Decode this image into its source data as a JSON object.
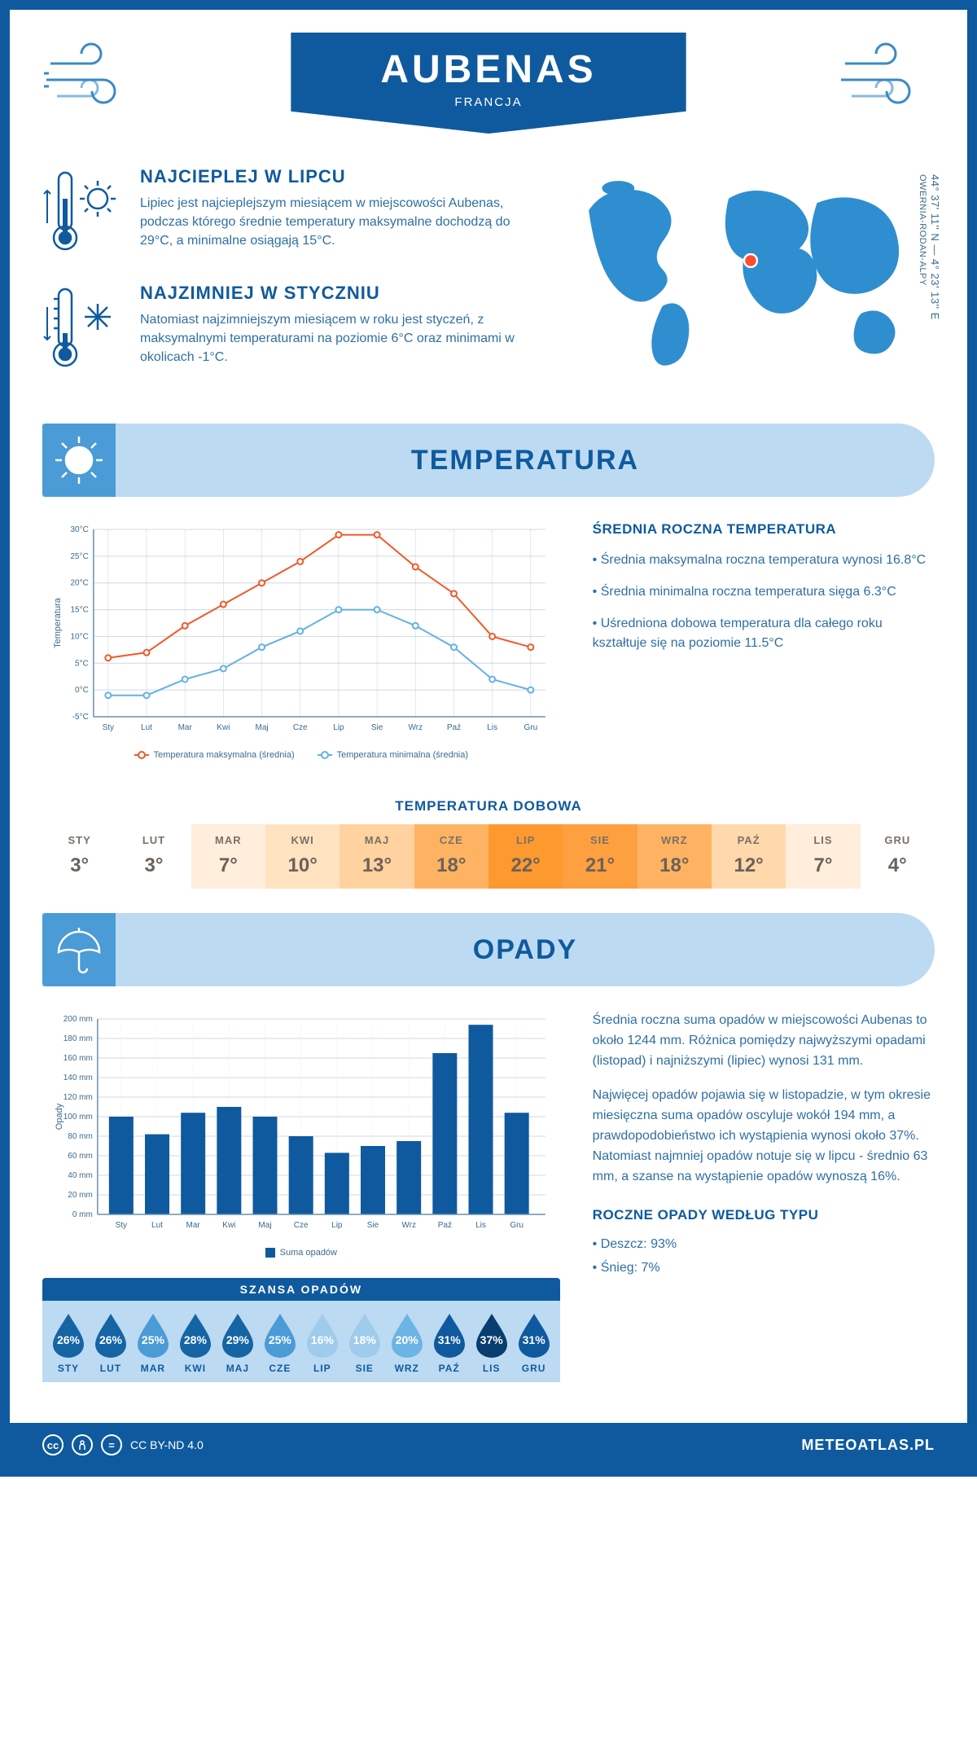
{
  "header": {
    "city": "AUBENAS",
    "country": "FRANCJA"
  },
  "intro": {
    "hot": {
      "title": "NAJCIEPLEJ W LIPCU",
      "body": "Lipiec jest najcieplejszym miesiącem w miejscowości Aubenas, podczas którego średnie temperatury maksymalne dochodzą do 29°C, a minimalne osiągają 15°C."
    },
    "cold": {
      "title": "NAJZIMNIEJ W STYCZNIU",
      "body": "Natomiast najzimniejszym miesiącem w roku jest styczeń, z maksymalnymi temperaturami na poziomie 6°C oraz minimami w okolicach -1°C."
    },
    "coords": "44° 37' 11'' N — 4° 23' 13'' E",
    "region": "OWERNIA-RODAN-ALPY"
  },
  "temperature": {
    "section_title": "TEMPERATURA",
    "months": [
      "Sty",
      "Lut",
      "Mar",
      "Kwi",
      "Maj",
      "Cze",
      "Lip",
      "Sie",
      "Wrz",
      "Paź",
      "Lis",
      "Gru"
    ],
    "max": [
      6,
      7,
      12,
      16,
      20,
      24,
      29,
      29,
      23,
      18,
      10,
      8
    ],
    "min": [
      -1,
      -1,
      2,
      4,
      8,
      11,
      15,
      15,
      12,
      8,
      2,
      0
    ],
    "ylim": [
      -5,
      30
    ],
    "yticks": [
      -5,
      0,
      5,
      10,
      15,
      20,
      25,
      30
    ],
    "ytick_labels": [
      "-5°C",
      "0°C",
      "5°C",
      "10°C",
      "15°C",
      "20°C",
      "25°C",
      "30°C"
    ],
    "colors": {
      "max": "#ee5a2a",
      "min": "#64b1e4",
      "grid": "#d0d8e0"
    },
    "axis_label": "Temperatura",
    "legend_max": "Temperatura maksymalna (średnia)",
    "legend_min": "Temperatura minimalna (średnia)",
    "info_title": "ŚREDNIA ROCZNA TEMPERATURA",
    "info_lines": [
      "• Średnia maksymalna roczna temperatura wynosi 16.8°C",
      "• Średnia minimalna roczna temperatura sięga 6.3°C",
      "• Uśredniona dobowa temperatura dla całego roku kształtuje się na poziomie 11.5°C"
    ],
    "daily_title": "TEMPERATURA DOBOWA",
    "daily_months": [
      "STY",
      "LUT",
      "MAR",
      "KWI",
      "MAJ",
      "CZE",
      "LIP",
      "SIE",
      "WRZ",
      "PAŹ",
      "LIS",
      "GRU"
    ],
    "daily_values": [
      "3°",
      "3°",
      "7°",
      "10°",
      "13°",
      "18°",
      "22°",
      "21°",
      "18°",
      "12°",
      "7°",
      "4°"
    ],
    "daily_colors": [
      "#ffffff",
      "#ffffff",
      "#ffeedb",
      "#ffe2c0",
      "#ffd2a0",
      "#ffb362",
      "#fe9930",
      "#fea040",
      "#ffb362",
      "#ffd8ac",
      "#ffeedb",
      "#ffffff"
    ]
  },
  "precipitation": {
    "section_title": "OPADY",
    "months": [
      "Sty",
      "Lut",
      "Mar",
      "Kwi",
      "Maj",
      "Cze",
      "Lip",
      "Sie",
      "Wrz",
      "Paź",
      "Lis",
      "Gru"
    ],
    "values": [
      100,
      82,
      104,
      110,
      100,
      80,
      63,
      70,
      75,
      165,
      194,
      104
    ],
    "ylim": [
      0,
      200
    ],
    "yticks": [
      0,
      20,
      40,
      60,
      80,
      100,
      120,
      140,
      160,
      180,
      200
    ],
    "ytick_labels": [
      "0 mm",
      "20 mm",
      "40 mm",
      "60 mm",
      "80 mm",
      "100 mm",
      "120 mm",
      "140 mm",
      "160 mm",
      "180 mm",
      "200 mm"
    ],
    "bar_color": "#0f5a9e",
    "axis_label": "Opady",
    "legend": "Suma opadów",
    "summary_1": "Średnia roczna suma opadów w miejscowości Aubenas to około 1244 mm. Różnica pomiędzy najwyższymi opadami (listopad) i najniższymi (lipiec) wynosi 131 mm.",
    "summary_2": "Najwięcej opadów pojawia się w listopadzie, w tym okresie miesięczna suma opadów oscyluje wokół 194 mm, a prawdopodobieństwo ich wystąpienia wynosi około 37%. Natomiast najmniej opadów notuje się w lipcu - średnio 63 mm, a szanse na wystąpienie opadów wynoszą 16%.",
    "chance_title": "SZANSA OPADÓW",
    "chance_months": [
      "STY",
      "LUT",
      "MAR",
      "KWI",
      "MAJ",
      "CZE",
      "LIP",
      "SIE",
      "WRZ",
      "PAŹ",
      "LIS",
      "GRU"
    ],
    "chance_values": [
      "26%",
      "26%",
      "25%",
      "28%",
      "29%",
      "25%",
      "16%",
      "18%",
      "20%",
      "31%",
      "37%",
      "31%"
    ],
    "chance_colors": [
      "#1565a5",
      "#1565a5",
      "#4a9bd6",
      "#1565a5",
      "#1565a5",
      "#4a9bd6",
      "#9fcbec",
      "#9fcbec",
      "#6cb4e4",
      "#0f5a9e",
      "#083e6f",
      "#0f5a9e"
    ],
    "type_title": "ROCZNE OPADY WEDŁUG TYPU",
    "type_lines": [
      "• Deszcz: 93%",
      "• Śnieg: 7%"
    ]
  },
  "footer": {
    "license": "CC BY-ND 4.0",
    "site": "METEOATLAS.PL"
  }
}
